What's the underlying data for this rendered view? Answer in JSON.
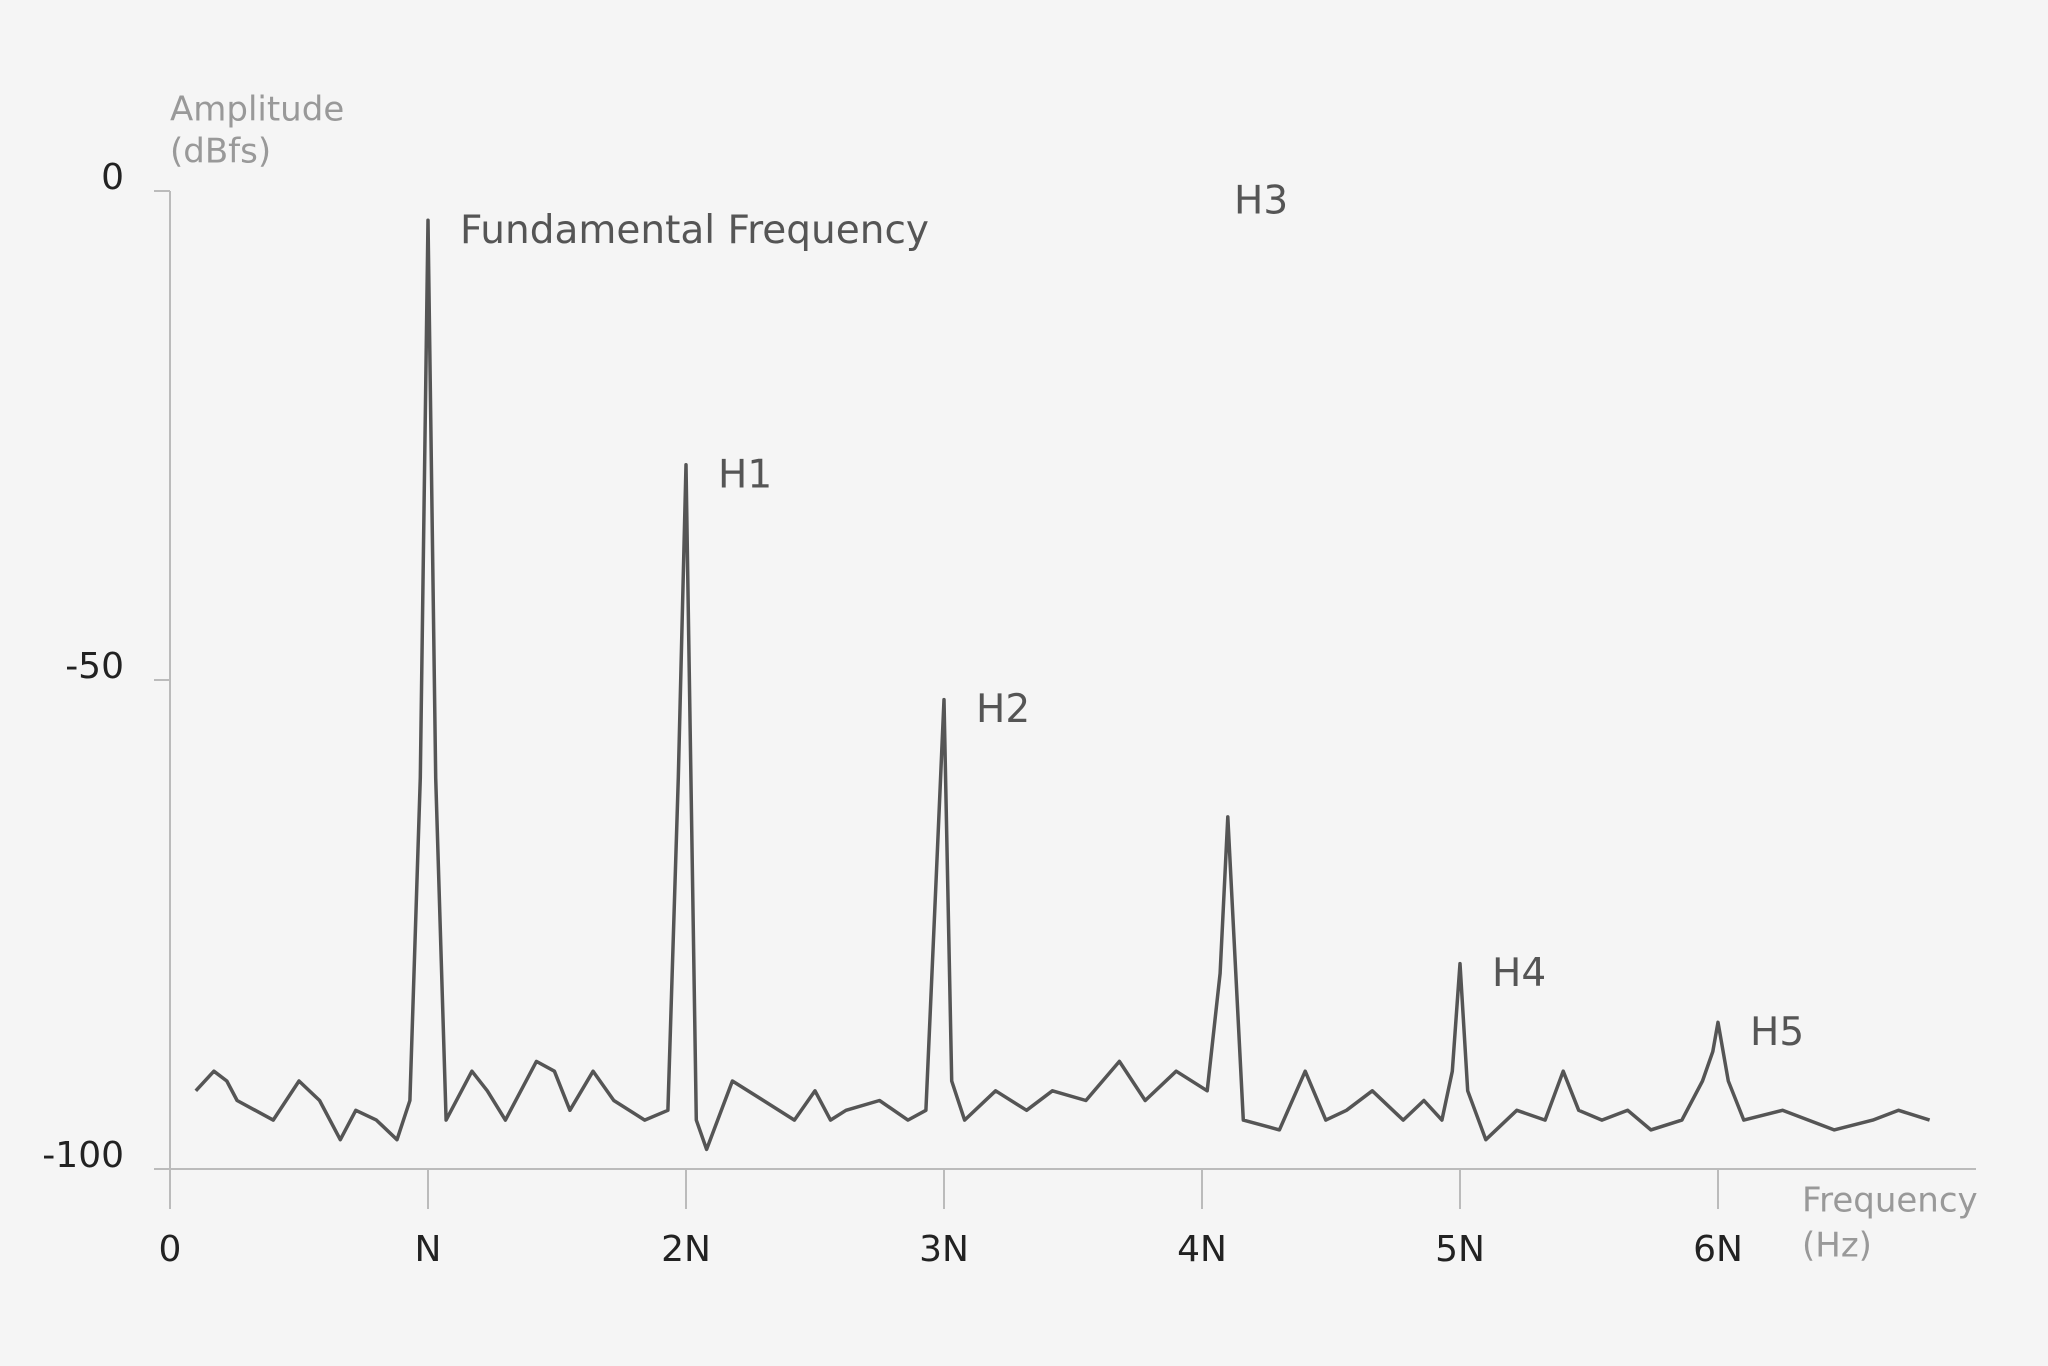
{
  "chart_data": {
    "type": "line",
    "ylabel": [
      "Amplitude",
      "(dBfs)"
    ],
    "xlabel": [
      "Frequency",
      "(Hz)"
    ],
    "color": "#555555",
    "axis_color": "#bbbbbb",
    "xlim": [
      0,
      7
    ],
    "ylim": [
      -100,
      0
    ],
    "xticks": [
      0,
      {
        "value": 1,
        "label": "N"
      },
      {
        "value": 2,
        "label": "2N"
      },
      {
        "value": 3,
        "label": "3N"
      },
      {
        "value": 4,
        "label": "4N"
      },
      {
        "value": 5,
        "label": "5N"
      },
      {
        "value": 6,
        "label": "6N"
      }
    ],
    "yticks": [
      -100,
      -50,
      0
    ],
    "x": [
      0.1,
      0.17,
      0.22,
      0.26,
      0.4,
      0.5,
      0.58,
      0.66,
      0.72,
      0.8,
      0.88,
      0.93,
      0.97,
      1.0,
      1.03,
      1.07,
      1.17,
      1.23,
      1.3,
      1.42,
      1.49,
      1.55,
      1.64,
      1.72,
      1.84,
      1.93,
      1.97,
      2.0,
      2.04,
      2.08,
      2.18,
      2.3,
      2.42,
      2.5,
      2.56,
      2.62,
      2.75,
      2.86,
      2.93,
      2.97,
      3.0,
      3.03,
      3.08,
      3.2,
      3.32,
      3.42,
      3.55,
      3.68,
      3.78,
      3.9,
      4.02,
      4.07,
      4.1,
      4.16,
      4.3,
      4.4,
      4.48,
      4.56,
      4.66,
      4.78,
      4.86,
      4.93,
      4.97,
      5.0,
      5.03,
      5.1,
      5.22,
      5.33,
      5.4,
      5.46,
      5.55,
      5.65,
      5.74,
      5.86,
      5.94,
      5.98,
      6.0,
      6.04,
      6.1,
      6.25,
      6.45,
      6.6,
      6.7,
      6.82
    ],
    "values": [
      -92,
      -90,
      -91,
      -93,
      -95,
      -91,
      -93,
      -97,
      -94,
      -95,
      -97,
      -93,
      -60,
      -3,
      -60,
      -95,
      -90,
      -92,
      -95,
      -89,
      -90,
      -94,
      -90,
      -93,
      -95,
      -94,
      -60,
      -28,
      -95,
      -98,
      -91,
      -93,
      -95,
      -92,
      -95,
      -94,
      -93,
      -95,
      -94,
      -70,
      -52,
      -91,
      -95,
      -92,
      -94,
      -92,
      -93,
      -89,
      -93,
      -90,
      -92,
      -80,
      -64,
      -95,
      -96,
      -90,
      -95,
      -94,
      -92,
      -95,
      -93,
      -95,
      -90,
      -79,
      -92,
      -97,
      -94,
      -95,
      -90,
      -94,
      -95,
      -94,
      -96,
      -95,
      -91,
      -88,
      -85,
      -91,
      -95,
      -94,
      -96,
      -95,
      -94,
      -95
    ],
    "annotations": [
      {
        "text": "Fundamental Frequency",
        "x": 1
      },
      {
        "text": "H1",
        "x": 2
      },
      {
        "text": "H2",
        "x": 3
      },
      {
        "text": "H3",
        "x": 4
      },
      {
        "text": "H4",
        "x": 5
      },
      {
        "text": "H5",
        "x": 6
      }
    ]
  }
}
